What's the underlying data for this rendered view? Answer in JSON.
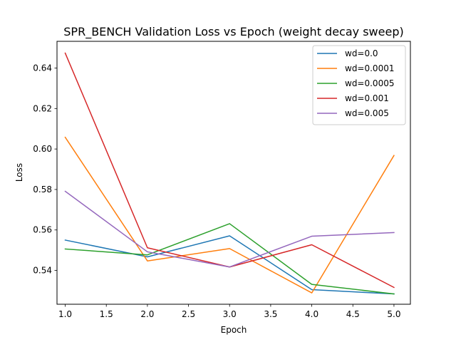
{
  "chart_data": {
    "type": "line",
    "title": "SPR_BENCH Validation Loss vs Epoch (weight decay sweep)",
    "xlabel": "Epoch",
    "ylabel": "Loss",
    "x": [
      1.0,
      2.0,
      3.0,
      4.0,
      5.0
    ],
    "xlim": [
      0.9,
      5.2
    ],
    "ylim": [
      0.5233,
      0.6532
    ],
    "xticks": [
      "1.0",
      "1.5",
      "2.0",
      "2.5",
      "3.0",
      "3.5",
      "4.0",
      "4.5",
      "5.0"
    ],
    "yticks": [
      "0.54",
      "0.56",
      "0.58",
      "0.60",
      "0.62",
      "0.64"
    ],
    "grid": false,
    "legend_position": "top-right",
    "series": [
      {
        "name": "wd=0.0",
        "color": "#1f77b4",
        "values": [
          0.555,
          0.5467,
          0.5571,
          0.5305,
          0.5284
        ]
      },
      {
        "name": "wd=0.0001",
        "color": "#ff7f0e",
        "values": [
          0.6058,
          0.5447,
          0.5508,
          0.5289,
          0.5968
        ]
      },
      {
        "name": "wd=0.0005",
        "color": "#2ca02c",
        "values": [
          0.5506,
          0.5477,
          0.5631,
          0.5331,
          0.5284
        ]
      },
      {
        "name": "wd=0.001",
        "color": "#d62728",
        "values": [
          0.6474,
          0.5512,
          0.5417,
          0.5527,
          0.5316
        ]
      },
      {
        "name": "wd=0.005",
        "color": "#9467bd",
        "values": [
          0.5791,
          0.5492,
          0.5417,
          0.5569,
          0.5587
        ]
      }
    ]
  }
}
